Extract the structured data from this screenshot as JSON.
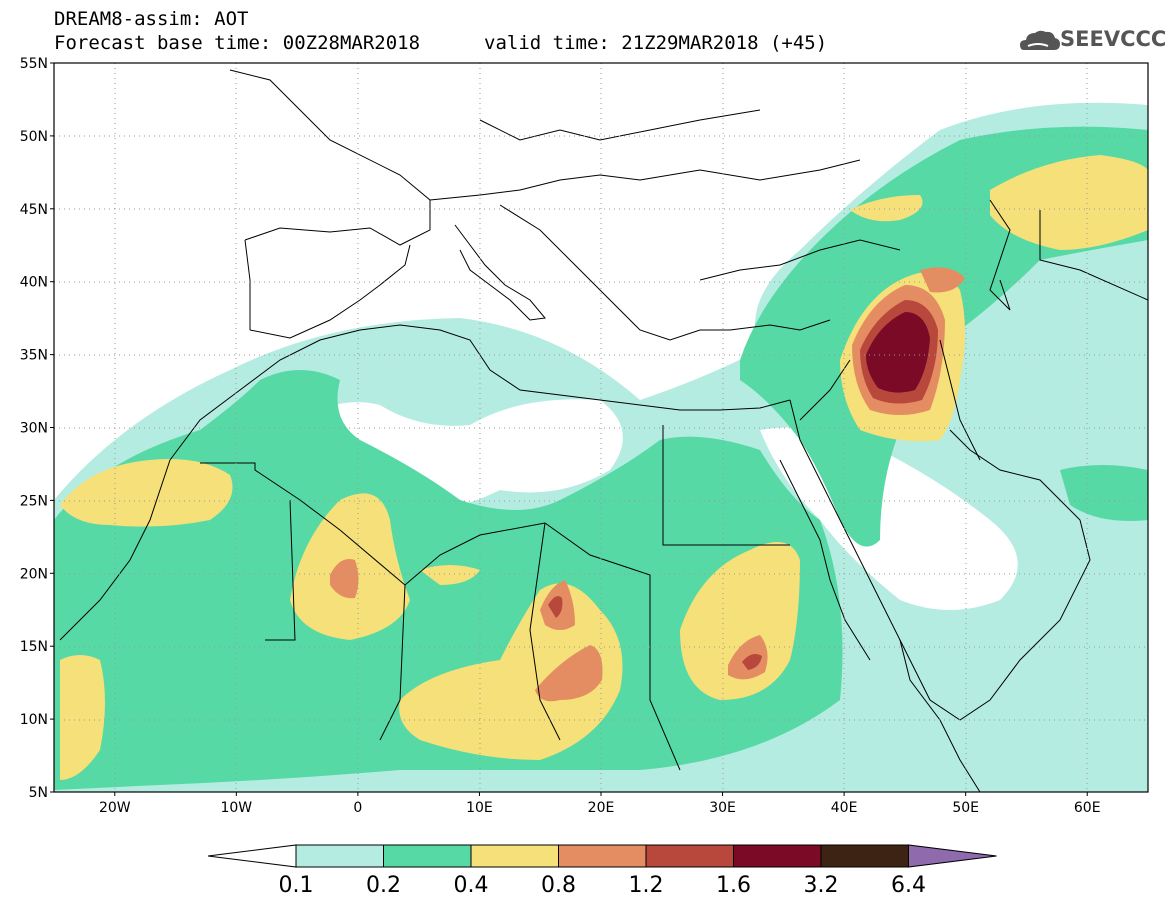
{
  "header": {
    "title_line1": "DREAM8-assim: AOT",
    "title_line2": "Forecast base time: 00Z28MAR2018",
    "valid_time": "valid time: 21Z29MAR2018 (+45)",
    "logo_text": "SEEVCCC"
  },
  "map": {
    "projection": "lat-lon",
    "lon_range": [
      -25,
      65
    ],
    "lat_range": [
      5,
      55
    ],
    "lat_ticks": [
      "5N",
      "10N",
      "15N",
      "20N",
      "25N",
      "30N",
      "35N",
      "40N",
      "45N",
      "50N",
      "55N"
    ],
    "lon_ticks": [
      "20W",
      "10W",
      "0",
      "10E",
      "20E",
      "30E",
      "40E",
      "50E",
      "60E"
    ],
    "grid": "dotted"
  },
  "colorbar": {
    "levels": [
      "0.1",
      "0.2",
      "0.4",
      "0.8",
      "1.2",
      "1.6",
      "3.2",
      "6.4"
    ],
    "colors": [
      "#b4ece1",
      "#57d9a6",
      "#f5e07a",
      "#e58d62",
      "#b8483c",
      "#7a0a26",
      "#3d2314",
      "#8f6bad"
    ],
    "under_color": "#ffffff",
    "over_color": "#8f6bad"
  }
}
